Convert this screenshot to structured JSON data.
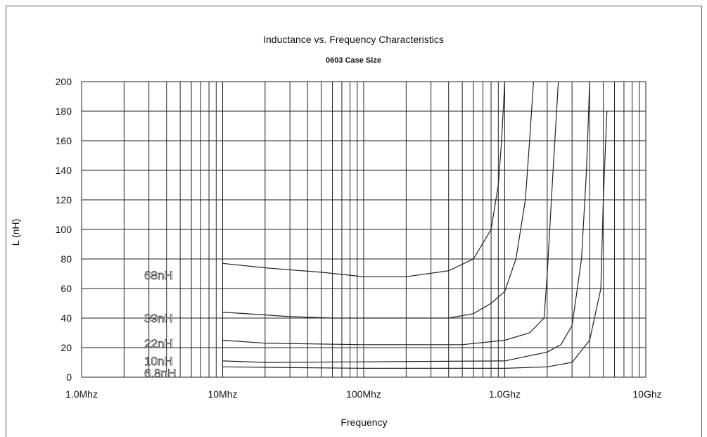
{
  "chart_data": {
    "type": "line",
    "title": "Inductance vs. Frequency Characteristics",
    "subtitle": "0603 Case Size",
    "xlabel": "Frequency",
    "ylabel": "L (nH)",
    "x_scale": "log",
    "xlim_hz": [
      1000000,
      10000000000
    ],
    "ylim": [
      0,
      200
    ],
    "grid": true,
    "x_tick_labels": [
      "1.0Mhz",
      "10Mhz",
      "100Mhz",
      "1.0Ghz",
      "10Ghz"
    ],
    "y_tick_labels": [
      "0",
      "20",
      "40",
      "60",
      "80",
      "100",
      "120",
      "140",
      "160",
      "180",
      "200"
    ],
    "series": [
      {
        "name": "68nH",
        "points_hz_nh": [
          [
            10000000,
            77
          ],
          [
            20000000,
            74
          ],
          [
            50000000,
            71
          ],
          [
            100000000,
            68
          ],
          [
            200000000,
            68
          ],
          [
            400000000,
            72
          ],
          [
            600000000,
            80
          ],
          [
            800000000,
            100
          ],
          [
            900000000,
            130
          ],
          [
            950000000,
            160
          ],
          [
            1000000000,
            200
          ]
        ]
      },
      {
        "name": "39nH",
        "points_hz_nh": [
          [
            10000000,
            44
          ],
          [
            30000000,
            41
          ],
          [
            60000000,
            40
          ],
          [
            400000000,
            40
          ],
          [
            600000000,
            43
          ],
          [
            800000000,
            50
          ],
          [
            1000000000,
            58
          ],
          [
            1200000000,
            80
          ],
          [
            1400000000,
            120
          ],
          [
            1500000000,
            160
          ],
          [
            1600000000,
            200
          ]
        ]
      },
      {
        "name": "22nH",
        "points_hz_nh": [
          [
            10000000,
            25
          ],
          [
            20000000,
            23
          ],
          [
            100000000,
            22
          ],
          [
            500000000,
            22
          ],
          [
            1000000000,
            25
          ],
          [
            1500000000,
            30
          ],
          [
            1900000000,
            40
          ],
          [
            2000000000,
            70
          ],
          [
            2200000000,
            140
          ],
          [
            2400000000,
            200
          ]
        ]
      },
      {
        "name": "10nH",
        "points_hz_nh": [
          [
            10000000,
            11
          ],
          [
            20000000,
            10
          ],
          [
            1000000000,
            11
          ],
          [
            2000000000,
            17
          ],
          [
            2500000000,
            22
          ],
          [
            3000000000,
            35
          ],
          [
            3500000000,
            80
          ],
          [
            3800000000,
            140
          ],
          [
            4000000000,
            200
          ]
        ]
      },
      {
        "name": "6.8nH",
        "points_hz_nh": [
          [
            10000000,
            7
          ],
          [
            100000000,
            6
          ],
          [
            1000000000,
            6
          ],
          [
            2000000000,
            7
          ],
          [
            3000000000,
            10
          ],
          [
            4000000000,
            25
          ],
          [
            4800000000,
            60
          ],
          [
            5000000000,
            120
          ],
          [
            5300000000,
            180
          ]
        ]
      }
    ]
  },
  "series_labels": [
    "68nH",
    "39nH",
    "22nH",
    "10nH",
    "6.8nH"
  ]
}
